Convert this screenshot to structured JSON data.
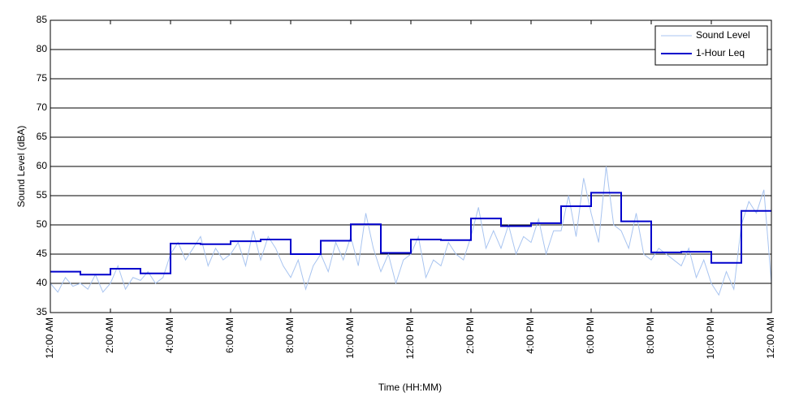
{
  "chart_data": {
    "type": "line",
    "xlabel": "Time (HH:MM)",
    "ylabel": "Sound Level (dBA)",
    "xlim": [
      0,
      24
    ],
    "xticks": [
      {
        "value": 0,
        "label": "12:00 AM"
      },
      {
        "value": 2,
        "label": "2:00 AM"
      },
      {
        "value": 4,
        "label": "4:00 AM"
      },
      {
        "value": 6,
        "label": "6:00 AM"
      },
      {
        "value": 8,
        "label": "8:00 AM"
      },
      {
        "value": 10,
        "label": "10:00 AM"
      },
      {
        "value": 12,
        "label": "12:00 PM"
      },
      {
        "value": 14,
        "label": "2:00 PM"
      },
      {
        "value": 16,
        "label": "4:00 PM"
      },
      {
        "value": 18,
        "label": "6:00 PM"
      },
      {
        "value": 20,
        "label": "8:00 PM"
      },
      {
        "value": 22,
        "label": "10:00 PM"
      },
      {
        "value": 24,
        "label": "12:00 AM"
      }
    ],
    "ylim": [
      35,
      85
    ],
    "yticks": [
      35,
      40,
      45,
      50,
      55,
      60,
      65,
      70,
      75,
      80,
      85
    ],
    "grid": true,
    "legend": "upper-right",
    "series": [
      {
        "name": "Sound Level",
        "color": "#a8c4f0",
        "width": 1,
        "step": false,
        "x": [
          0,
          0.25,
          0.5,
          0.75,
          1,
          1.25,
          1.5,
          1.75,
          2,
          2.25,
          2.5,
          2.75,
          3,
          3.25,
          3.5,
          3.75,
          4,
          4.25,
          4.5,
          4.75,
          5,
          5.25,
          5.5,
          5.75,
          6,
          6.25,
          6.5,
          6.75,
          7,
          7.25,
          7.5,
          7.75,
          8,
          8.25,
          8.5,
          8.75,
          9,
          9.25,
          9.5,
          9.75,
          10,
          10.25,
          10.5,
          10.75,
          11,
          11.25,
          11.5,
          11.75,
          12,
          12.25,
          12.5,
          12.75,
          13,
          13.25,
          13.5,
          13.75,
          14,
          14.25,
          14.5,
          14.75,
          15,
          15.25,
          15.5,
          15.75,
          16,
          16.25,
          16.5,
          16.75,
          17,
          17.25,
          17.5,
          17.75,
          18,
          18.25,
          18.5,
          18.75,
          19,
          19.25,
          19.5,
          19.75,
          20,
          20.25,
          20.5,
          20.75,
          21,
          21.25,
          21.5,
          21.75,
          22,
          22.25,
          22.5,
          22.75,
          23,
          23.25,
          23.5,
          23.75,
          24
        ],
        "values": [
          40,
          38.5,
          41,
          39.5,
          40,
          39,
          41.5,
          38.5,
          40,
          43,
          39,
          41,
          40.5,
          42,
          40,
          41,
          45,
          47,
          44,
          46,
          48,
          43,
          46,
          44,
          45,
          47,
          43,
          49,
          44,
          48,
          46,
          43,
          41,
          44,
          39,
          43,
          45,
          42,
          47,
          44,
          48,
          43,
          52,
          46,
          42,
          45,
          40,
          44,
          45,
          48,
          41,
          44,
          43,
          47,
          45,
          44,
          48,
          53,
          46,
          49,
          46,
          50,
          45,
          48,
          47,
          51,
          45,
          49,
          49,
          55,
          48,
          58,
          52,
          47,
          60,
          50,
          49,
          46,
          52,
          45,
          44,
          46,
          45,
          44,
          43,
          46,
          41,
          44,
          40,
          38,
          42,
          39,
          50,
          54,
          52,
          56,
          40
        ]
      },
      {
        "name": "1-Hour Leq",
        "color": "#0000cc",
        "width": 2,
        "step": true,
        "x": [
          0,
          1,
          2,
          3,
          4,
          5,
          6,
          7,
          8,
          9,
          10,
          11,
          12,
          13,
          14,
          15,
          16,
          17,
          18,
          19,
          20,
          21,
          22,
          23,
          24
        ],
        "values": [
          42.0,
          41.5,
          42.5,
          41.7,
          46.8,
          46.7,
          47.2,
          47.5,
          45.0,
          47.3,
          50.1,
          45.2,
          47.5,
          47.4,
          51.1,
          49.8,
          50.3,
          53.2,
          55.5,
          50.6,
          45.3,
          45.4,
          43.5,
          52.4,
          52.4
        ]
      }
    ]
  }
}
